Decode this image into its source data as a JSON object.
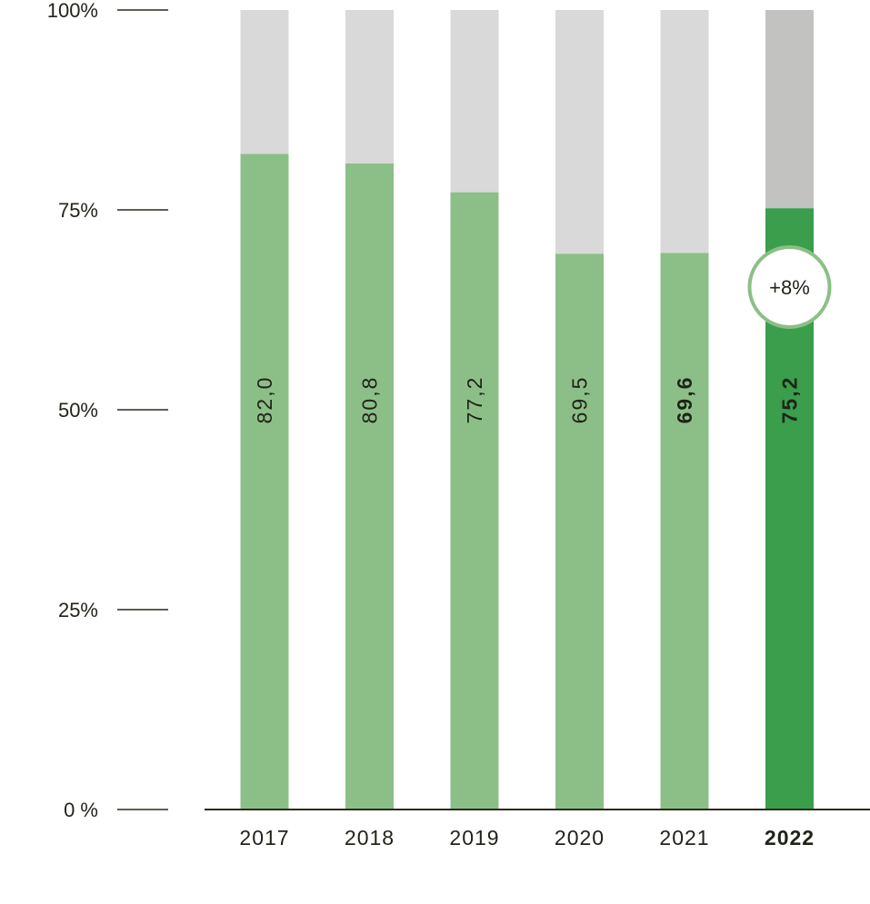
{
  "chart_data": {
    "type": "bar",
    "stacked_to": 100,
    "categories": [
      "2017",
      "2018",
      "2019",
      "2020",
      "2021",
      "2022"
    ],
    "values": [
      82.0,
      80.8,
      77.2,
      69.5,
      69.6,
      75.2
    ],
    "value_labels": [
      "82,0",
      "80,8",
      "77,2",
      "69,5",
      "69,6",
      "75,2"
    ],
    "bold_value_labels": [
      "2021",
      "2022"
    ],
    "highlight_category": "2022",
    "ylim": [
      0,
      100
    ],
    "y_ticks": [
      0,
      25,
      50,
      75,
      100
    ],
    "y_tick_labels": [
      "0 %",
      "25%",
      "50%",
      "75%",
      "100%"
    ],
    "title": "",
    "xlabel": "",
    "ylabel": "",
    "annotation": {
      "category": "2022",
      "text": "+8%"
    },
    "colors": {
      "bar": "#8cbf87",
      "bar_highlight": "#3a9e4d",
      "remainder": "#d9d9d9",
      "remainder_highlight": "#c2c2c0",
      "axis": "#2b2a1a",
      "text": "#1f2318",
      "badge_border": "#8cbf87"
    },
    "grid": false,
    "legend": "none"
  }
}
